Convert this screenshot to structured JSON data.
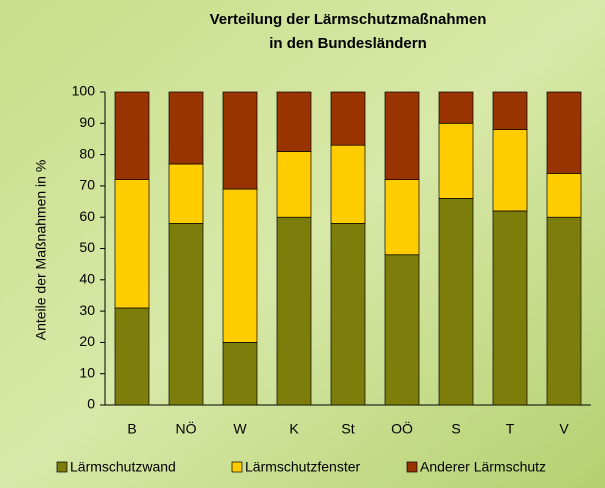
{
  "chart_data": {
    "type": "stacked_bar",
    "title": [
      "Verteilung der Lärmschutzmaßnahmen",
      "in den Bundesländern"
    ],
    "y_label": "Anteile der Maßnahmen in %",
    "categories": [
      "B",
      "NÖ",
      "W",
      "K",
      "St",
      "OÖ",
      "S",
      "T",
      "V"
    ],
    "series": [
      {
        "name": "Lärmschutzwand",
        "color": "#7d7d0c",
        "values": [
          31,
          58,
          20,
          60,
          58,
          48,
          66,
          62,
          60
        ]
      },
      {
        "name": "Lärmschutzfenster",
        "color": "#ffcc00",
        "values": [
          41,
          19,
          49,
          21,
          25,
          24,
          24,
          26,
          14
        ]
      },
      {
        "name": "Anderer Lärmschutz",
        "color": "#993300",
        "values": [
          28,
          23,
          31,
          19,
          17,
          28,
          10,
          12,
          26
        ]
      }
    ],
    "ylim": [
      0,
      100
    ],
    "yticks": [
      0,
      10,
      20,
      30,
      40,
      50,
      60,
      70,
      80,
      90,
      100
    ]
  }
}
